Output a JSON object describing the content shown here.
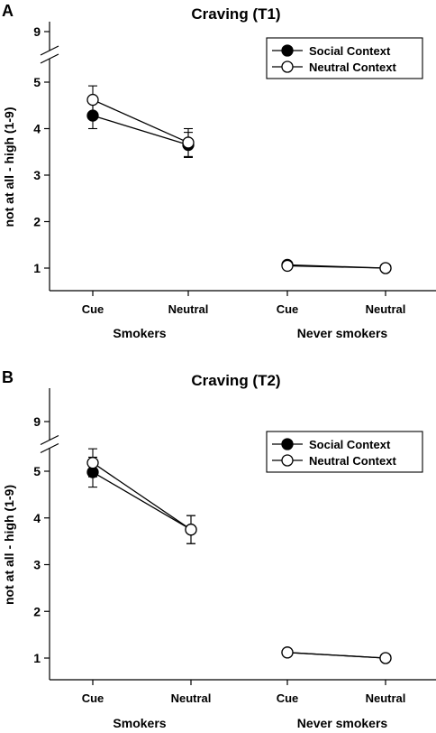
{
  "chart_data": [
    {
      "type": "line",
      "panel": "A",
      "title": "Craving (T1)",
      "ylabel": "not at all - high (1-9)",
      "ylim": [
        0.6,
        9
      ],
      "yticks": [
        "1",
        "2",
        "3",
        "4",
        "5",
        "9"
      ],
      "axis_break": "between 5 and 9",
      "categories": [
        "Cue",
        "Neutral",
        "Cue",
        "Neutral"
      ],
      "groups": [
        "Smokers",
        "Never smokers"
      ],
      "legend_position": "top-right",
      "series": [
        {
          "name": "Social Context",
          "marker": "filled-circle",
          "values": [
            4.28,
            3.65,
            1.07,
            1.0
          ],
          "errors": [
            0.28,
            0.27,
            0.0,
            0.0
          ]
        },
        {
          "name": "Neutral Context",
          "marker": "open-circle",
          "values": [
            4.62,
            3.7,
            1.05,
            1.0
          ],
          "errors": [
            0.3,
            0.3,
            0.0,
            0.0
          ]
        }
      ]
    },
    {
      "type": "line",
      "panel": "B",
      "title": "Craving (T2)",
      "ylabel": "not at all - high (1-9)",
      "ylim": [
        0.6,
        9
      ],
      "yticks": [
        "1",
        "2",
        "3",
        "4",
        "5",
        "9"
      ],
      "axis_break": "between 5 and 9",
      "categories": [
        "Cue",
        "Neutral",
        "Cue",
        "Neutral"
      ],
      "groups": [
        "Smokers",
        "Never smokers"
      ],
      "legend_position": "top-right",
      "series": [
        {
          "name": "Social Context",
          "marker": "filled-circle",
          "values": [
            4.98,
            3.75,
            1.12,
            1.0
          ],
          "errors": [
            0.32,
            0.3,
            0.0,
            0.0
          ]
        },
        {
          "name": "Neutral Context",
          "marker": "open-circle",
          "values": [
            5.18,
            3.75,
            1.12,
            1.0
          ],
          "errors": [
            0.3,
            0.3,
            0.0,
            0.0
          ]
        }
      ]
    }
  ]
}
